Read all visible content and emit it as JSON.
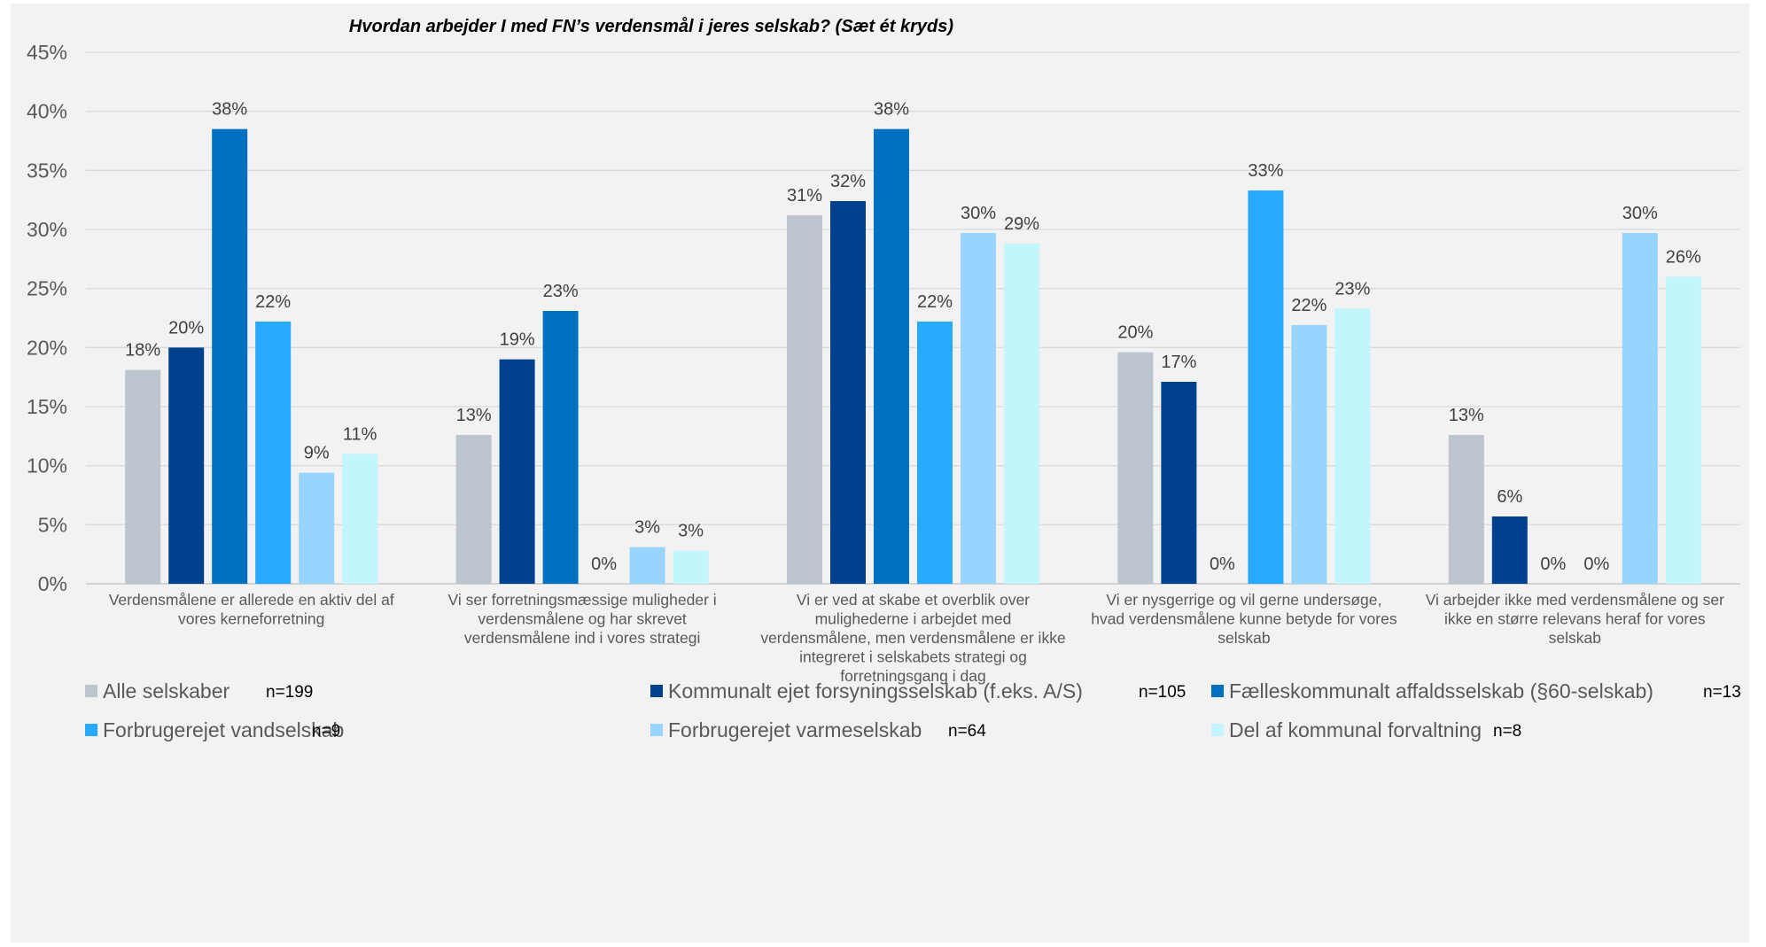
{
  "chart_data": {
    "type": "bar",
    "title": "Hvordan arbejder I med FN’s verdensmål i jeres selskab? (Sæt ét kryds)",
    "ylim": [
      0,
      45
    ],
    "yticks": [
      "0%",
      "5%",
      "10%",
      "15%",
      "20%",
      "25%",
      "30%",
      "35%",
      "40%",
      "45%"
    ],
    "grid": true,
    "legend_position": "bottom",
    "categories": [
      [
        "Verdensmålene er allerede en aktiv del af",
        "vores kerneforretning"
      ],
      [
        "Vi ser forretningsmæssige muligheder i",
        "verdensmålene og har skrevet",
        "verdensmålene ind i vores strategi"
      ],
      [
        "Vi er ved at skabe et overblik over",
        "mulighederne i arbejdet med",
        "verdensmålene, men verdensmålene er ikke",
        "integreret i selskabets strategi og",
        "forretningsgang i dag"
      ],
      [
        "Vi er nysgerrige og vil gerne undersøge,",
        "hvad verdensmålene kunne betyde for vores",
        "selskab"
      ],
      [
        "Vi arbejder ikke med verdensmålene og ser",
        "ikke en større relevans heraf for vores",
        "selskab"
      ]
    ],
    "series": [
      {
        "name": "Alle selskaber",
        "n": "n=199",
        "color": "#bcc4cd",
        "values": [
          18.1,
          12.6,
          31.2,
          19.6,
          12.6
        ],
        "labels": [
          "18%",
          "13%",
          "31%",
          "20%",
          "13%"
        ]
      },
      {
        "name": "Kommunalt ejet forsyningsselskab (f.eks. A/S)",
        "n": "n=105",
        "color": "#00418f",
        "values": [
          20.0,
          19.0,
          32.4,
          17.1,
          5.7
        ],
        "labels": [
          "20%",
          "19%",
          "32%",
          "17%",
          "6%"
        ]
      },
      {
        "name": "Fælleskommunalt affaldsselskab (§60-selskab)",
        "n": "n=13",
        "color": "#0070c0",
        "values": [
          38.5,
          23.1,
          38.5,
          0,
          0
        ],
        "labels": [
          "38%",
          "23%",
          "38%",
          "0%",
          "0%"
        ]
      },
      {
        "name": "Forbrugerejet vandselskab",
        "n": "n=9",
        "color": "#29a8ff",
        "values": [
          22.2,
          0,
          22.2,
          33.3,
          0
        ],
        "labels": [
          "22%",
          "0%",
          "22%",
          "33%",
          "0%"
        ]
      },
      {
        "name": "Forbrugerejet varmeselskab",
        "n": "n=64",
        "color": "#99d4ff",
        "values": [
          9.4,
          3.1,
          29.7,
          21.9,
          29.7
        ],
        "labels": [
          "9%",
          "3%",
          "30%",
          "22%",
          "30%"
        ]
      },
      {
        "name": "Del af kommunal forvaltning",
        "n": "n=8",
        "color": "#c2f6fc",
        "values": [
          11.0,
          2.8,
          28.8,
          23.3,
          26.0
        ],
        "labels": [
          "11%",
          "3%",
          "29%",
          "23%",
          "26%"
        ]
      }
    ]
  }
}
